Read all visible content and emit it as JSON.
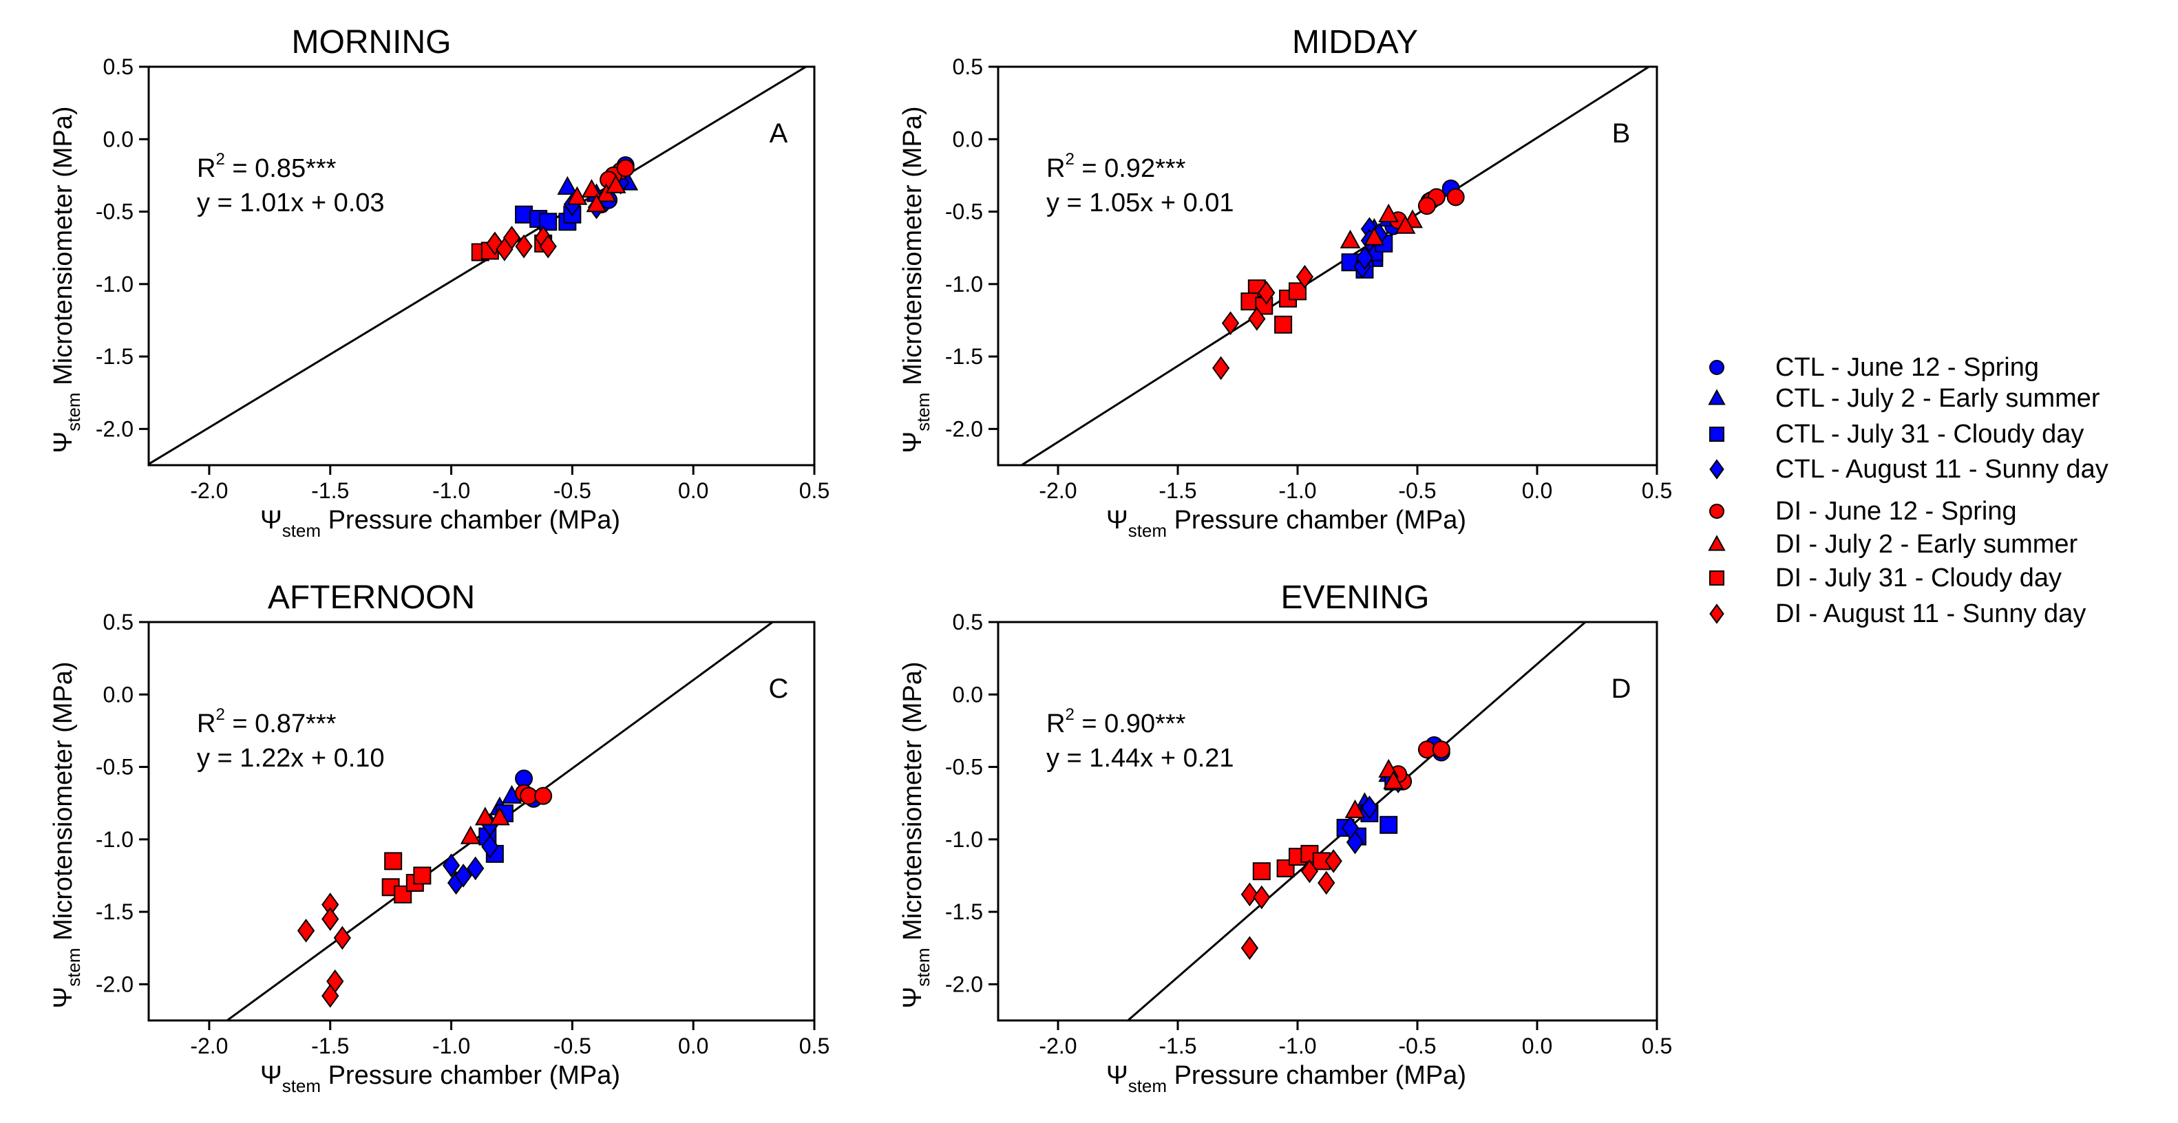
{
  "chart_data": {
    "type": "scatter",
    "xlabel": {
      "symbol": "Ψ",
      "sub": "stem",
      "text": " Pressure chamber  (MPa)"
    },
    "ylabel": {
      "symbol": "Ψ",
      "sub": "stem",
      "text": " Microtensiometer (MPa)"
    },
    "xlim": [
      -2.25,
      0.5
    ],
    "ylim": [
      -2.25,
      0.5
    ],
    "xticks": [
      "-2.0",
      "-1.5",
      "-1.0",
      "-0.5",
      "0.0",
      "0.5"
    ],
    "xtick_values": [
      -2.0,
      -1.5,
      -1.0,
      -0.5,
      0.0,
      0.5
    ],
    "yticks": [
      "0.5",
      "0.0",
      "-0.5",
      "-1.0",
      "-1.5",
      "-2.0"
    ],
    "ytick_values": [
      0.5,
      0.0,
      -0.5,
      -1.0,
      -1.5,
      -2.0
    ],
    "legend": {
      "placement": "right",
      "entries": [
        {
          "label": "CTL - June 12 - Spring",
          "color": "#0000ff",
          "marker": "circle"
        },
        {
          "label": "CTL - July 2 - Early summer",
          "color": "#0000ff",
          "marker": "triangle"
        },
        {
          "label": "CTL - July 31 - Cloudy day",
          "color": "#0000ff",
          "marker": "square"
        },
        {
          "label": "CTL - August 11 - Sunny day",
          "color": "#0000ff",
          "marker": "diamond"
        },
        {
          "label": "DI - June 12 - Spring",
          "color": "#ff0000",
          "marker": "circle"
        },
        {
          "label": "DI - July 2 - Early summer",
          "color": "#ff0000",
          "marker": "triangle"
        },
        {
          "label": "DI - July 31 - Cloudy day",
          "color": "#ff0000",
          "marker": "square"
        },
        {
          "label": "DI - August 11 - Sunny day",
          "color": "#ff0000",
          "marker": "diamond"
        }
      ]
    },
    "panels": [
      {
        "title": "MORNING",
        "letter": "A",
        "r2": {
          "prefix": "R",
          "sup": "2",
          "text": " = 0.85***"
        },
        "equation": "y = 1.01x + 0.03",
        "fit": {
          "slope": 1.01,
          "intercept": 0.03
        },
        "series": [
          [
            [
              -0.28,
              -0.18
            ],
            [
              -0.3,
              -0.22
            ],
            [
              -0.38,
              -0.45
            ],
            [
              -0.35,
              -0.42
            ]
          ],
          [
            [
              -0.52,
              -0.33
            ],
            [
              -0.27,
              -0.3
            ],
            [
              -0.4,
              -0.38
            ]
          ],
          [
            [
              -0.7,
              -0.52
            ],
            [
              -0.64,
              -0.55
            ],
            [
              -0.6,
              -0.57
            ],
            [
              -0.52,
              -0.57
            ],
            [
              -0.5,
              -0.52
            ]
          ],
          [
            [
              -0.5,
              -0.45
            ],
            [
              -0.4,
              -0.47
            ],
            [
              -0.3,
              -0.3
            ]
          ],
          [
            [
              -0.3,
              -0.22
            ],
            [
              -0.33,
              -0.25
            ],
            [
              -0.35,
              -0.28
            ],
            [
              -0.28,
              -0.2
            ]
          ],
          [
            [
              -0.48,
              -0.4
            ],
            [
              -0.42,
              -0.35
            ],
            [
              -0.36,
              -0.38
            ],
            [
              -0.32,
              -0.32
            ],
            [
              -0.4,
              -0.45
            ]
          ],
          [
            [
              -0.88,
              -0.78
            ],
            [
              -0.84,
              -0.77
            ],
            [
              -0.62,
              -0.72
            ]
          ],
          [
            [
              -0.82,
              -0.72
            ],
            [
              -0.75,
              -0.68
            ],
            [
              -0.7,
              -0.74
            ],
            [
              -0.62,
              -0.68
            ],
            [
              -0.6,
              -0.74
            ],
            [
              -0.78,
              -0.76
            ]
          ]
        ]
      },
      {
        "title": "MIDDAY",
        "letter": "B",
        "r2": {
          "prefix": "R",
          "sup": "2",
          "text": " = 0.92***"
        },
        "equation": "y = 1.05x + 0.01",
        "fit": {
          "slope": 1.05,
          "intercept": 0.01
        },
        "series": [
          [
            [
              -0.36,
              -0.34
            ],
            [
              -0.45,
              -0.43
            ],
            [
              -0.6,
              -0.6
            ]
          ],
          [
            [
              -0.62,
              -0.55
            ],
            [
              -0.68,
              -0.62
            ]
          ],
          [
            [
              -0.78,
              -0.85
            ],
            [
              -0.68,
              -0.82
            ],
            [
              -0.68,
              -0.78
            ],
            [
              -0.64,
              -0.72
            ],
            [
              -0.72,
              -0.9
            ]
          ],
          [
            [
              -0.7,
              -0.62
            ],
            [
              -0.66,
              -0.66
            ],
            [
              -0.73,
              -0.88
            ],
            [
              -0.72,
              -0.82
            ],
            [
              -0.7,
              -0.7
            ]
          ],
          [
            [
              -0.44,
              -0.42
            ],
            [
              -0.42,
              -0.4
            ],
            [
              -0.34,
              -0.4
            ],
            [
              -0.46,
              -0.46
            ],
            [
              -0.58,
              -0.56
            ]
          ],
          [
            [
              -0.78,
              -0.7
            ],
            [
              -0.62,
              -0.52
            ],
            [
              -0.52,
              -0.56
            ],
            [
              -0.55,
              -0.6
            ],
            [
              -0.68,
              -0.68
            ]
          ],
          [
            [
              -1.17,
              -1.03
            ],
            [
              -1.2,
              -1.12
            ],
            [
              -1.14,
              -1.15
            ],
            [
              -1.06,
              -1.28
            ],
            [
              -1.04,
              -1.1
            ],
            [
              -1.0,
              -1.05
            ]
          ],
          [
            [
              -1.28,
              -1.27
            ],
            [
              -1.13,
              -1.06
            ],
            [
              -1.17,
              -1.24
            ],
            [
              -0.97,
              -0.95
            ],
            [
              -1.32,
              -1.58
            ]
          ]
        ]
      },
      {
        "title": "AFTERNOON",
        "letter": "C",
        "r2": {
          "prefix": "R",
          "sup": "2",
          "text": " = 0.87***"
        },
        "equation": "y = 1.22x + 0.10",
        "fit": {
          "slope": 1.22,
          "intercept": 0.1
        },
        "series": [
          [
            [
              -0.7,
              -0.58
            ],
            [
              -0.66,
              -0.72
            ]
          ],
          [
            [
              -0.75,
              -0.7
            ],
            [
              -0.8,
              -0.78
            ]
          ],
          [
            [
              -0.85,
              -0.98
            ],
            [
              -0.82,
              -1.1
            ],
            [
              -0.78,
              -0.82
            ]
          ],
          [
            [
              -0.98,
              -1.3
            ],
            [
              -0.95,
              -1.25
            ],
            [
              -0.9,
              -1.2
            ],
            [
              -0.84,
              -1.05
            ],
            [
              -1.0,
              -1.18
            ],
            [
              -0.84,
              -0.9
            ]
          ],
          [
            [
              -0.7,
              -0.68
            ],
            [
              -0.68,
              -0.7
            ],
            [
              -0.62,
              -0.7
            ]
          ],
          [
            [
              -0.92,
              -0.98
            ],
            [
              -0.86,
              -0.85
            ],
            [
              -0.8,
              -0.85
            ]
          ],
          [
            [
              -1.25,
              -1.33
            ],
            [
              -1.24,
              -1.15
            ],
            [
              -1.2,
              -1.38
            ],
            [
              -1.15,
              -1.3
            ],
            [
              -1.12,
              -1.25
            ]
          ],
          [
            [
              -1.6,
              -1.63
            ],
            [
              -1.5,
              -1.45
            ],
            [
              -1.5,
              -1.55
            ],
            [
              -1.48,
              -1.98
            ],
            [
              -1.5,
              -2.08
            ],
            [
              -1.45,
              -1.68
            ]
          ]
        ]
      },
      {
        "title": "EVENING",
        "letter": "D",
        "r2": {
          "prefix": "R",
          "sup": "2",
          "text": " = 0.90***"
        },
        "equation": "y = 1.44x + 0.21",
        "fit": {
          "slope": 1.44,
          "intercept": 0.21
        },
        "series": [
          [
            [
              -0.43,
              -0.35
            ],
            [
              -0.4,
              -0.4
            ]
          ],
          [
            [
              -0.62,
              -0.55
            ],
            [
              -0.72,
              -0.75
            ]
          ],
          [
            [
              -0.62,
              -0.9
            ],
            [
              -0.7,
              -0.82
            ],
            [
              -0.75,
              -0.98
            ],
            [
              -0.8,
              -0.92
            ],
            [
              -0.6,
              -0.6
            ]
          ],
          [
            [
              -0.76,
              -1.02
            ],
            [
              -0.7,
              -0.78
            ],
            [
              -0.78,
              -0.92
            ],
            [
              -0.58,
              -0.6
            ]
          ],
          [
            [
              -0.46,
              -0.38
            ],
            [
              -0.4,
              -0.38
            ],
            [
              -0.56,
              -0.6
            ],
            [
              -0.58,
              -0.55
            ]
          ],
          [
            [
              -0.62,
              -0.52
            ],
            [
              -0.76,
              -0.8
            ],
            [
              -0.6,
              -0.6
            ]
          ],
          [
            [
              -1.15,
              -1.22
            ],
            [
              -1.05,
              -1.2
            ],
            [
              -1.0,
              -1.12
            ],
            [
              -0.95,
              -1.1
            ],
            [
              -0.9,
              -1.15
            ]
          ],
          [
            [
              -1.2,
              -1.38
            ],
            [
              -1.15,
              -1.4
            ],
            [
              -0.95,
              -1.22
            ],
            [
              -0.88,
              -1.3
            ],
            [
              -0.85,
              -1.15
            ],
            [
              -1.2,
              -1.75
            ]
          ]
        ]
      }
    ]
  }
}
